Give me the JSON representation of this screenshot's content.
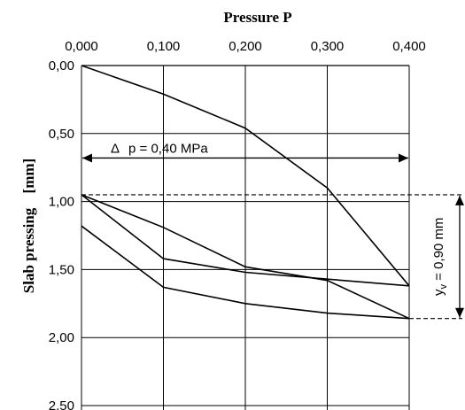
{
  "chart_data": {
    "type": "line",
    "title": "Pressure P",
    "ylabel_main": "Slab pressing",
    "ylabel_unit": "[mm]",
    "x_ticks": [
      "0,000",
      "0,100",
      "0,200",
      "0,300",
      "0,400"
    ],
    "y_ticks": [
      "0,00",
      "0,50",
      "1,00",
      "1,50",
      "2,00",
      "2,50"
    ],
    "xlim": [
      0,
      0.4
    ],
    "ylim": [
      0,
      2.5
    ],
    "y_inverted": true,
    "x_axis_position": "top",
    "grid": true,
    "series": [
      {
        "x": [
          0,
          0.1,
          0.2,
          0.3,
          0.4
        ],
        "y": [
          0.0,
          0.21,
          0.46,
          0.9,
          1.62
        ]
      },
      {
        "x": [
          0,
          0.1,
          0.2,
          0.3,
          0.4
        ],
        "y": [
          0.95,
          1.19,
          1.48,
          1.58,
          1.86
        ]
      },
      {
        "x": [
          0,
          0.1,
          0.2,
          0.3,
          0.4
        ],
        "y": [
          0.95,
          1.42,
          1.52,
          1.57,
          1.62
        ]
      },
      {
        "x": [
          0,
          0.1,
          0.2,
          0.3,
          0.4
        ],
        "y": [
          1.18,
          1.63,
          1.75,
          1.82,
          1.86
        ]
      }
    ],
    "annotations": {
      "delta_p_prefix": "Δ",
      "delta_p_text": "p = 0,40 MPa",
      "yv_text": "y",
      "yv_sub": "v",
      "yv_value": " = 0,90 mm",
      "yv_top": 0.95,
      "yv_bottom": 1.86,
      "delta_p_y": 0.68
    }
  }
}
